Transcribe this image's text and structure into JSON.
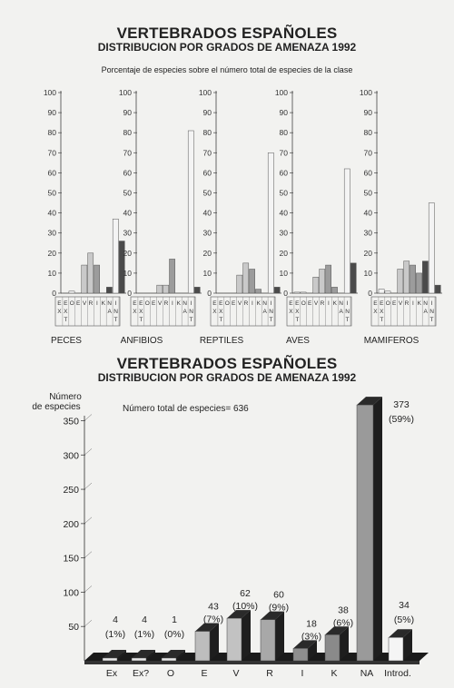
{
  "header_top": {
    "title": "VERTEBRADOS ESPAÑOLES",
    "subtitle": "DISTRIBUCION POR GRADOS DE AMENAZA 1992",
    "note": "Porcentaje de especies sobre el número total de especies de la clase"
  },
  "header_bottom": {
    "title": "VERTEBRADOS ESPAÑOLES",
    "subtitle": "DISTRIBUCION POR GRADOS DE AMENAZA 1992"
  },
  "colors": {
    "light": "#f4f4f4",
    "mid_light": "#c9c9c9",
    "mid": "#9c9c9c",
    "dark": "#4a4a4a",
    "bar_side": "#1c1c1c"
  },
  "chart_data": [
    {
      "type": "bar",
      "title": "PECES",
      "ylim": [
        0,
        100
      ],
      "yticks": [
        "0",
        "10",
        "20",
        "30",
        "40",
        "50",
        "60",
        "70",
        "80",
        "90",
        "100"
      ],
      "categories": [
        "E X",
        "E X ?",
        "O",
        "E",
        "V",
        "R",
        "I",
        "K",
        "N A",
        "I N T"
      ],
      "values": [
        0,
        1,
        0,
        14,
        20,
        14,
        0,
        3,
        37,
        26
      ],
      "category_labels_top": [
        "E",
        "E",
        "O",
        "E",
        "V",
        "R",
        "I",
        "K",
        "N",
        "I"
      ],
      "category_labels_mid": [
        "X",
        "X",
        "",
        "",
        "",
        "",
        "",
        "",
        "A",
        "N"
      ],
      "category_labels_bot": [
        "",
        "T",
        "",
        "",
        "",
        "",
        "",
        "",
        "",
        "T"
      ]
    },
    {
      "type": "bar",
      "title": "ANFIBIOS",
      "ylim": [
        0,
        100
      ],
      "yticks": [
        "0",
        "10",
        "20",
        "30",
        "40",
        "50",
        "60",
        "70",
        "80",
        "90",
        "100"
      ],
      "categories": [
        "E X",
        "E X ?",
        "O",
        "E",
        "V",
        "R",
        "I",
        "K",
        "N A",
        "I N T"
      ],
      "values": [
        0,
        0,
        0,
        4,
        4,
        17,
        0,
        0,
        81,
        3
      ],
      "category_labels_top": [
        "E",
        "E",
        "O",
        "E",
        "V",
        "R",
        "I",
        "K",
        "N",
        "I"
      ],
      "category_labels_mid": [
        "X",
        "X",
        "",
        "",
        "",
        "",
        "",
        "",
        "A",
        "N"
      ],
      "category_labels_bot": [
        "",
        "T",
        "",
        "",
        "",
        "",
        "",
        "",
        "",
        "T"
      ]
    },
    {
      "type": "bar",
      "title": "REPTILES",
      "ylim": [
        0,
        100
      ],
      "yticks": [
        "0",
        "10",
        "20",
        "30",
        "40",
        "50",
        "60",
        "70",
        "80",
        "90",
        "100"
      ],
      "categories": [
        "E X",
        "E X ?",
        "O",
        "E",
        "V",
        "R",
        "I",
        "K",
        "N A",
        "I N T"
      ],
      "values": [
        0,
        0,
        0,
        9,
        15,
        12,
        2,
        0,
        70,
        3
      ],
      "category_labels_top": [
        "E",
        "E",
        "O",
        "E",
        "V",
        "R",
        "I",
        "K",
        "N",
        "I"
      ],
      "category_labels_mid": [
        "X",
        "X",
        "",
        "",
        "",
        "",
        "",
        "",
        "A",
        "N"
      ],
      "category_labels_bot": [
        "",
        "T",
        "",
        "",
        "",
        "",
        "",
        "",
        "",
        "T"
      ]
    },
    {
      "type": "bar",
      "title": "AVES",
      "ylim": [
        0,
        100
      ],
      "yticks": [
        "0",
        "10",
        "20",
        "30",
        "40",
        "50",
        "60",
        "70",
        "80",
        "90",
        "100"
      ],
      "categories": [
        "E X",
        "E X ?",
        "O",
        "E",
        "V",
        "R",
        "I",
        "K",
        "N A",
        "I N T"
      ],
      "values": [
        0.5,
        0.5,
        0,
        8,
        12,
        14,
        3,
        0,
        62,
        15
      ],
      "category_labels_top": [
        "E",
        "E",
        "O",
        "E",
        "V",
        "R",
        "I",
        "K",
        "N",
        "I"
      ],
      "category_labels_mid": [
        "X",
        "X",
        "",
        "",
        "",
        "",
        "",
        "",
        "A",
        "N"
      ],
      "category_labels_bot": [
        "",
        "T",
        "",
        "",
        "",
        "",
        "",
        "",
        "",
        "T"
      ]
    },
    {
      "type": "bar",
      "title": "MAMIFEROS",
      "ylim": [
        0,
        100
      ],
      "yticks": [
        "0",
        "10",
        "20",
        "30",
        "40",
        "50",
        "60",
        "70",
        "80",
        "90",
        "100"
      ],
      "categories": [
        "E X",
        "E X ?",
        "O",
        "E",
        "V",
        "R",
        "I",
        "K",
        "N A",
        "I N T"
      ],
      "values": [
        2,
        1,
        0,
        12,
        16,
        14,
        10,
        16,
        45,
        4
      ],
      "category_labels_top": [
        "E",
        "E",
        "O",
        "E",
        "V",
        "R",
        "I",
        "K",
        "N",
        "I"
      ],
      "category_labels_mid": [
        "X",
        "X",
        "",
        "",
        "",
        "",
        "",
        "",
        "A",
        "N"
      ],
      "category_labels_bot": [
        "",
        "T",
        "",
        "",
        "",
        "",
        "",
        "",
        "",
        "T"
      ]
    },
    {
      "type": "bar",
      "title": "",
      "ylabel": "Número de especies",
      "note": "Número total de especies= 636",
      "ylim": [
        0,
        400
      ],
      "yticks": [
        "50",
        "100",
        "150",
        "200",
        "250",
        "300",
        "350"
      ],
      "categories": [
        "Ex",
        "Ex?",
        "O",
        "E",
        "V",
        "R",
        "I",
        "K",
        "NA",
        "Introd."
      ],
      "values": [
        4,
        4,
        1,
        43,
        62,
        60,
        18,
        38,
        373,
        34
      ],
      "count_labels": [
        "4",
        "4",
        "1",
        "43",
        "62",
        "60",
        "18",
        "38",
        "373",
        "34"
      ],
      "percent_labels": [
        "(1%)",
        "(1%)",
        "(0%)",
        "(7%)",
        "(10%)",
        "(9%)",
        "(3%)",
        "(6%)",
        "(59%)",
        "(5%)"
      ]
    }
  ]
}
